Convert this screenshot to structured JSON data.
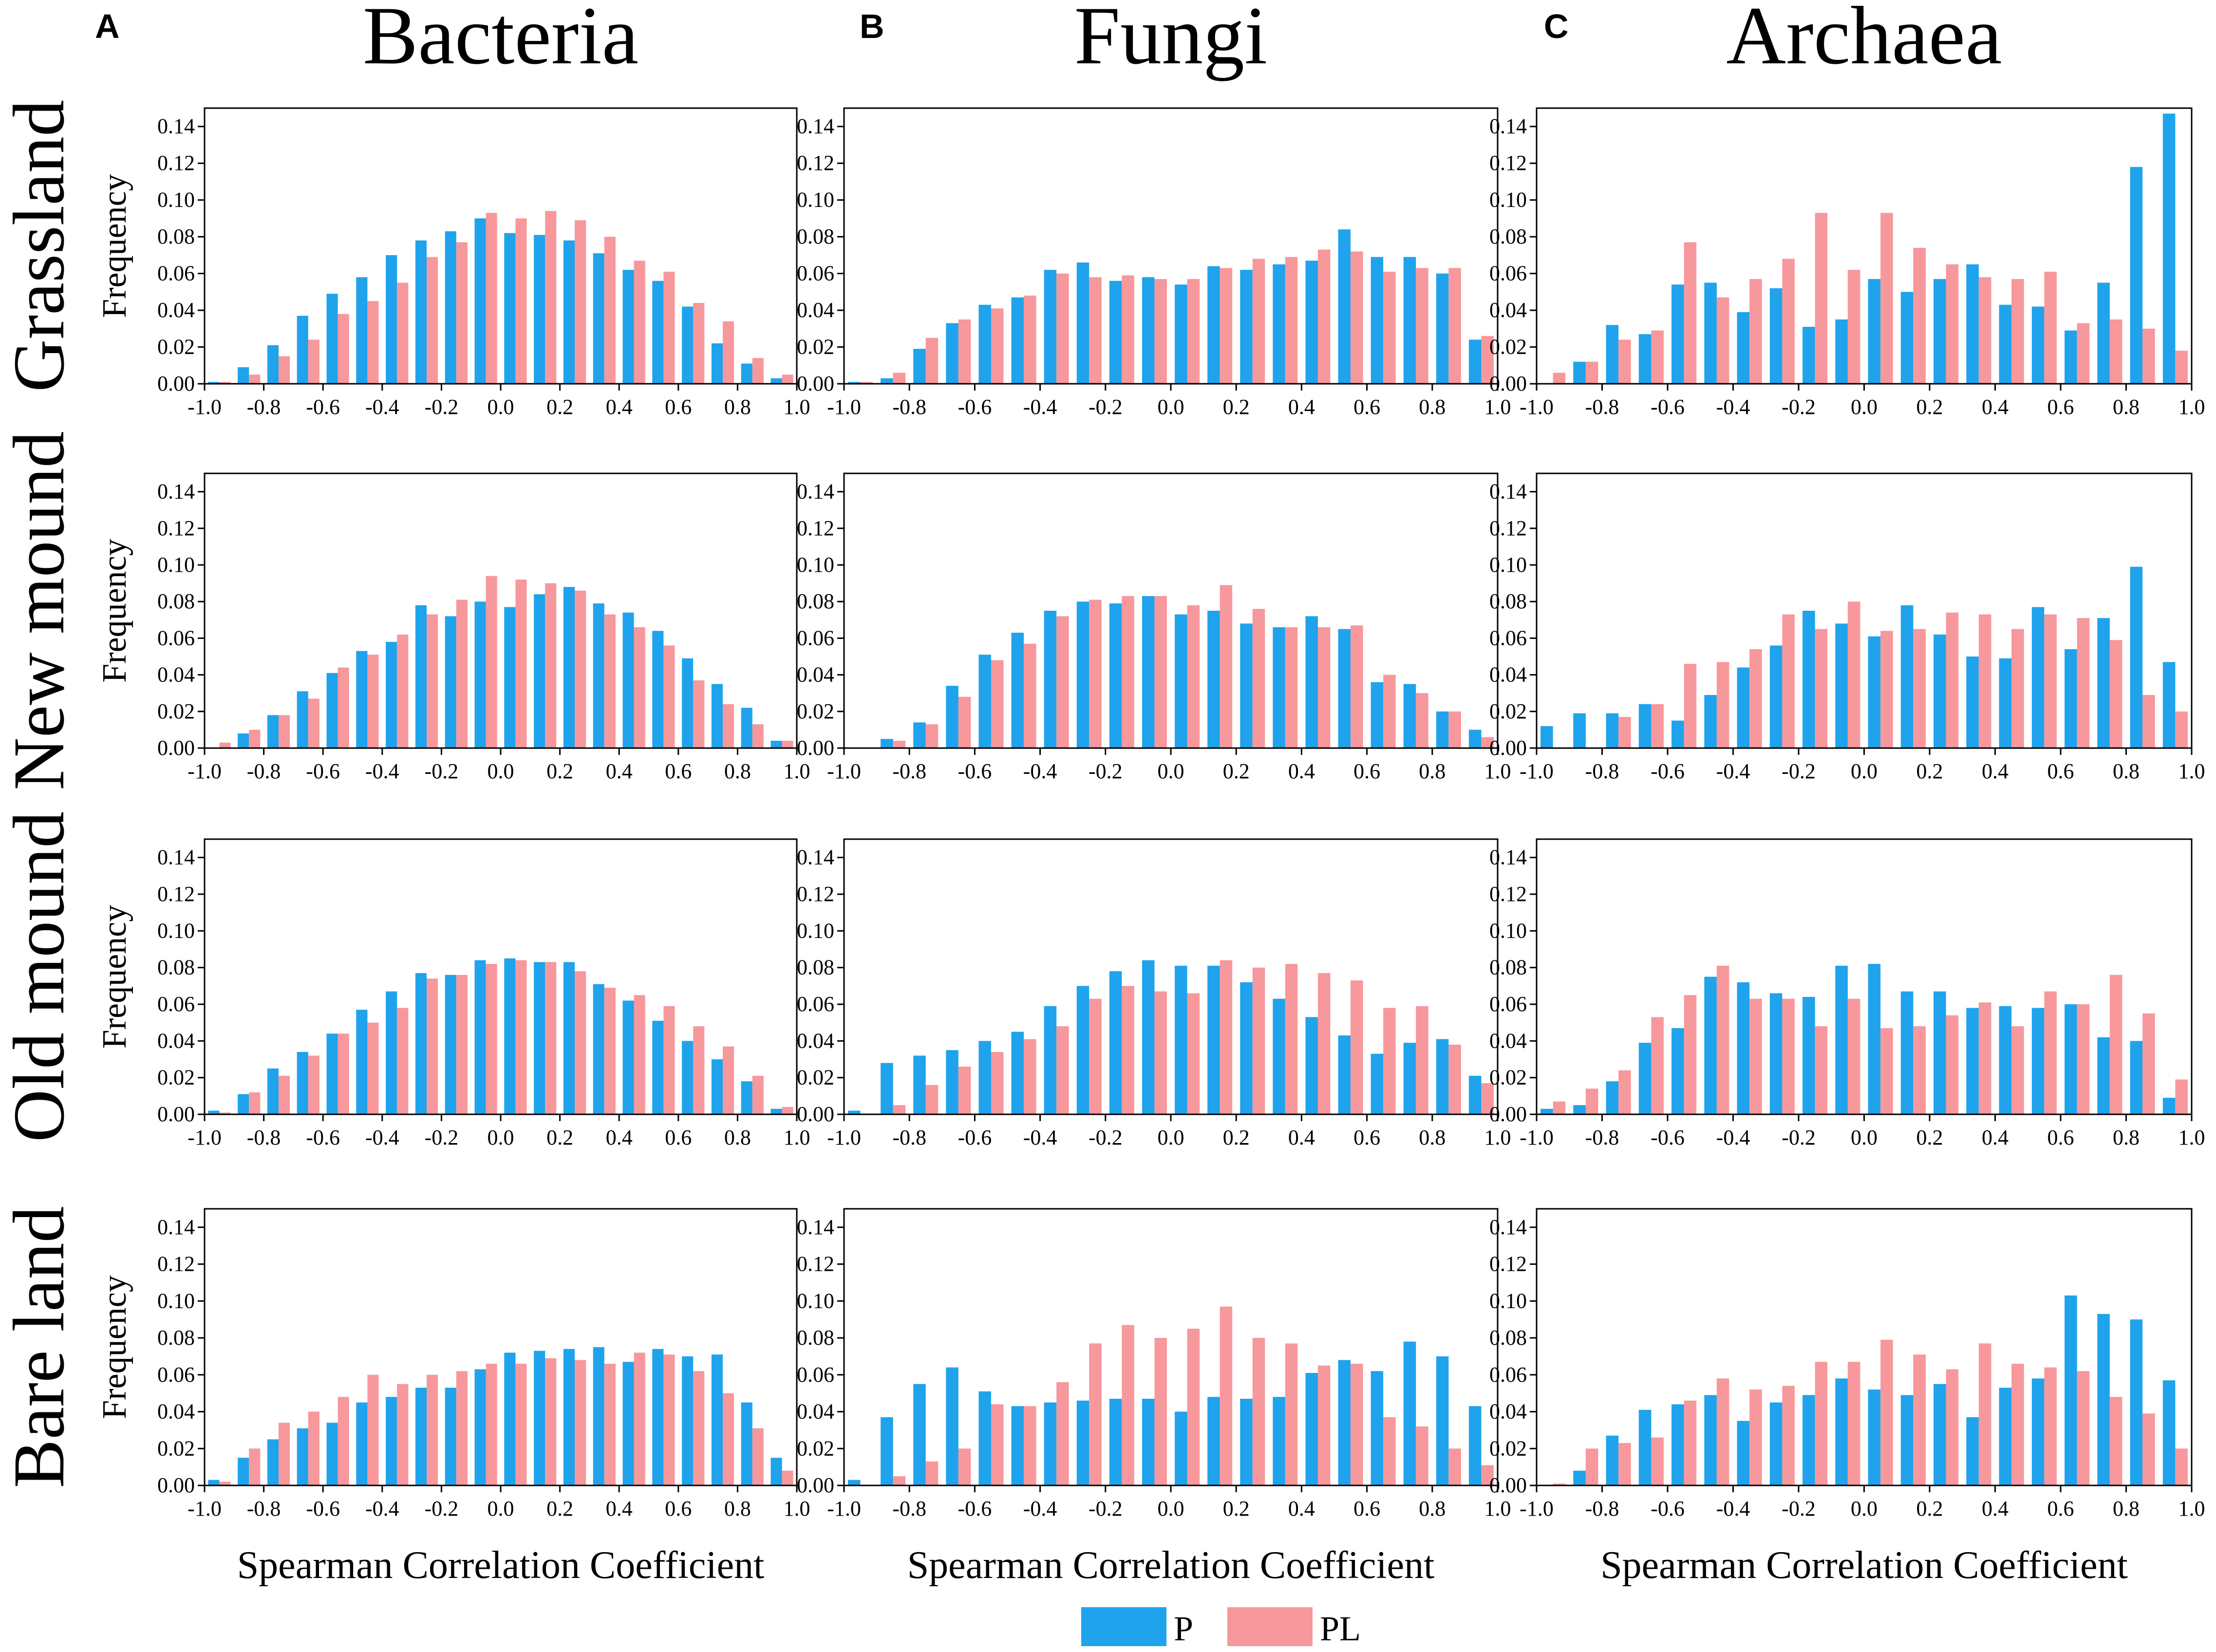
{
  "colors": {
    "P": "#1FA3EC",
    "PL": "#F7989C",
    "axis": "#000000"
  },
  "panel_letters": [
    "A",
    "B",
    "C"
  ],
  "col_titles": [
    "Bacteria",
    "Fungi",
    "Archaea"
  ],
  "row_titles": [
    "Grassland",
    "New mound",
    "Old mound",
    "Bare land"
  ],
  "ylabel": "Frequency",
  "xlabel": "Spearman Correlation Coefficient",
  "legend": [
    {
      "key": "P",
      "label": "P"
    },
    {
      "key": "PL",
      "label": "PL"
    }
  ],
  "chart_data": {
    "type": "bar",
    "xlim": [
      -1.0,
      1.0
    ],
    "ylim": [
      0,
      0.15
    ],
    "x_ticks": [
      "-1.0",
      "-0.8",
      "-0.6",
      "-0.4",
      "-0.2",
      "0.0",
      "0.2",
      "0.4",
      "0.6",
      "0.8",
      "1.0"
    ],
    "y_ticks": [
      "0.00",
      "0.02",
      "0.04",
      "0.06",
      "0.08",
      "0.10",
      "0.12",
      "0.14"
    ],
    "bin_centers": [
      -0.95,
      -0.85,
      -0.75,
      -0.65,
      -0.55,
      -0.45,
      -0.35,
      -0.25,
      -0.15,
      -0.05,
      0.05,
      0.15,
      0.25,
      0.35,
      0.45,
      0.55,
      0.65,
      0.75,
      0.85,
      0.95
    ],
    "series_names": [
      "P",
      "PL"
    ],
    "panels": [
      {
        "row": "Grassland",
        "col": "Bacteria",
        "P": [
          0.001,
          0.009,
          0.021,
          0.037,
          0.049,
          0.058,
          0.07,
          0.078,
          0.083,
          0.09,
          0.082,
          0.081,
          0.078,
          0.071,
          0.062,
          0.056,
          0.042,
          0.022,
          0.011,
          0.003
        ],
        "PL": [
          0.001,
          0.005,
          0.015,
          0.024,
          0.038,
          0.045,
          0.055,
          0.069,
          0.077,
          0.093,
          0.09,
          0.094,
          0.089,
          0.08,
          0.067,
          0.061,
          0.044,
          0.034,
          0.014,
          0.005
        ]
      },
      {
        "row": "Grassland",
        "col": "Fungi",
        "P": [
          0.001,
          0.003,
          0.019,
          0.033,
          0.043,
          0.047,
          0.062,
          0.066,
          0.056,
          0.058,
          0.054,
          0.064,
          0.062,
          0.065,
          0.067,
          0.084,
          0.069,
          0.069,
          0.06,
          0.024
        ],
        "PL": [
          0.001,
          0.006,
          0.025,
          0.035,
          0.041,
          0.048,
          0.06,
          0.058,
          0.059,
          0.057,
          0.057,
          0.063,
          0.068,
          0.069,
          0.073,
          0.072,
          0.061,
          0.063,
          0.063,
          0.026
        ]
      },
      {
        "row": "Grassland",
        "col": "Archaea",
        "P": [
          0.0,
          0.012,
          0.032,
          0.027,
          0.054,
          0.055,
          0.039,
          0.052,
          0.031,
          0.035,
          0.057,
          0.05,
          0.057,
          0.065,
          0.043,
          0.042,
          0.029,
          0.055,
          0.118,
          0.147
        ],
        "PL": [
          0.006,
          0.012,
          0.024,
          0.029,
          0.077,
          0.047,
          0.057,
          0.068,
          0.093,
          0.062,
          0.093,
          0.074,
          0.065,
          0.058,
          0.057,
          0.061,
          0.033,
          0.035,
          0.03,
          0.018
        ]
      },
      {
        "row": "New mound",
        "col": "Bacteria",
        "P": [
          0.0,
          0.008,
          0.018,
          0.031,
          0.041,
          0.053,
          0.058,
          0.078,
          0.072,
          0.08,
          0.077,
          0.084,
          0.088,
          0.079,
          0.074,
          0.064,
          0.049,
          0.035,
          0.022,
          0.004
        ],
        "PL": [
          0.003,
          0.01,
          0.018,
          0.027,
          0.044,
          0.051,
          0.062,
          0.073,
          0.081,
          0.094,
          0.092,
          0.09,
          0.086,
          0.073,
          0.066,
          0.056,
          0.037,
          0.024,
          0.013,
          0.004
        ]
      },
      {
        "row": "New mound",
        "col": "Fungi",
        "P": [
          0.0,
          0.005,
          0.014,
          0.034,
          0.051,
          0.063,
          0.075,
          0.08,
          0.079,
          0.083,
          0.073,
          0.075,
          0.068,
          0.066,
          0.072,
          0.065,
          0.036,
          0.035,
          0.02,
          0.01
        ],
        "PL": [
          0.0,
          0.004,
          0.013,
          0.028,
          0.048,
          0.057,
          0.072,
          0.081,
          0.083,
          0.083,
          0.078,
          0.089,
          0.076,
          0.066,
          0.066,
          0.067,
          0.04,
          0.03,
          0.02,
          0.006
        ]
      },
      {
        "row": "New mound",
        "col": "Archaea",
        "P": [
          0.012,
          0.019,
          0.019,
          0.024,
          0.015,
          0.029,
          0.044,
          0.056,
          0.075,
          0.068,
          0.061,
          0.078,
          0.062,
          0.05,
          0.049,
          0.077,
          0.054,
          0.071,
          0.099,
          0.047
        ],
        "PL": [
          0.0,
          0.0,
          0.017,
          0.024,
          0.046,
          0.047,
          0.054,
          0.073,
          0.065,
          0.08,
          0.064,
          0.065,
          0.074,
          0.073,
          0.065,
          0.073,
          0.071,
          0.059,
          0.029,
          0.02
        ]
      },
      {
        "row": "Old mound",
        "col": "Bacteria",
        "P": [
          0.002,
          0.011,
          0.025,
          0.034,
          0.044,
          0.057,
          0.067,
          0.077,
          0.076,
          0.084,
          0.085,
          0.083,
          0.083,
          0.071,
          0.062,
          0.051,
          0.04,
          0.03,
          0.018,
          0.003
        ],
        "PL": [
          0.001,
          0.012,
          0.021,
          0.032,
          0.044,
          0.05,
          0.058,
          0.074,
          0.076,
          0.082,
          0.084,
          0.083,
          0.078,
          0.069,
          0.065,
          0.059,
          0.048,
          0.037,
          0.021,
          0.004
        ]
      },
      {
        "row": "Old mound",
        "col": "Fungi",
        "P": [
          0.002,
          0.028,
          0.032,
          0.035,
          0.04,
          0.045,
          0.059,
          0.07,
          0.078,
          0.084,
          0.081,
          0.081,
          0.072,
          0.063,
          0.053,
          0.043,
          0.033,
          0.039,
          0.041,
          0.021
        ],
        "PL": [
          0.0,
          0.005,
          0.016,
          0.026,
          0.034,
          0.041,
          0.048,
          0.063,
          0.07,
          0.067,
          0.066,
          0.084,
          0.08,
          0.082,
          0.077,
          0.073,
          0.058,
          0.059,
          0.038,
          0.017
        ]
      },
      {
        "row": "Old mound",
        "col": "Archaea",
        "P": [
          0.003,
          0.005,
          0.018,
          0.039,
          0.047,
          0.075,
          0.072,
          0.066,
          0.064,
          0.081,
          0.082,
          0.067,
          0.067,
          0.058,
          0.059,
          0.058,
          0.06,
          0.042,
          0.04,
          0.009
        ],
        "PL": [
          0.007,
          0.014,
          0.024,
          0.053,
          0.065,
          0.081,
          0.063,
          0.063,
          0.048,
          0.063,
          0.047,
          0.048,
          0.054,
          0.061,
          0.048,
          0.067,
          0.06,
          0.076,
          0.055,
          0.019
        ]
      },
      {
        "row": "Bare land",
        "col": "Bacteria",
        "P": [
          0.003,
          0.015,
          0.025,
          0.031,
          0.034,
          0.045,
          0.048,
          0.053,
          0.053,
          0.063,
          0.072,
          0.073,
          0.074,
          0.075,
          0.067,
          0.074,
          0.07,
          0.071,
          0.045,
          0.015
        ],
        "PL": [
          0.002,
          0.02,
          0.034,
          0.04,
          0.048,
          0.06,
          0.055,
          0.06,
          0.062,
          0.066,
          0.066,
          0.069,
          0.068,
          0.066,
          0.072,
          0.071,
          0.062,
          0.05,
          0.031,
          0.008
        ]
      },
      {
        "row": "Bare land",
        "col": "Fungi",
        "P": [
          0.003,
          0.037,
          0.055,
          0.064,
          0.051,
          0.043,
          0.045,
          0.046,
          0.047,
          0.047,
          0.04,
          0.048,
          0.047,
          0.048,
          0.061,
          0.068,
          0.062,
          0.078,
          0.07,
          0.043
        ],
        "PL": [
          0.0,
          0.005,
          0.013,
          0.02,
          0.044,
          0.043,
          0.056,
          0.077,
          0.087,
          0.08,
          0.085,
          0.097,
          0.08,
          0.077,
          0.065,
          0.066,
          0.037,
          0.032,
          0.02,
          0.011
        ]
      },
      {
        "row": "Bare land",
        "col": "Archaea",
        "P": [
          0.0,
          0.008,
          0.027,
          0.041,
          0.044,
          0.049,
          0.035,
          0.045,
          0.049,
          0.058,
          0.052,
          0.049,
          0.055,
          0.037,
          0.053,
          0.058,
          0.103,
          0.093,
          0.09,
          0.057
        ],
        "PL": [
          0.001,
          0.02,
          0.023,
          0.026,
          0.046,
          0.058,
          0.052,
          0.054,
          0.067,
          0.067,
          0.079,
          0.071,
          0.063,
          0.077,
          0.066,
          0.064,
          0.062,
          0.048,
          0.039,
          0.02
        ]
      }
    ]
  }
}
